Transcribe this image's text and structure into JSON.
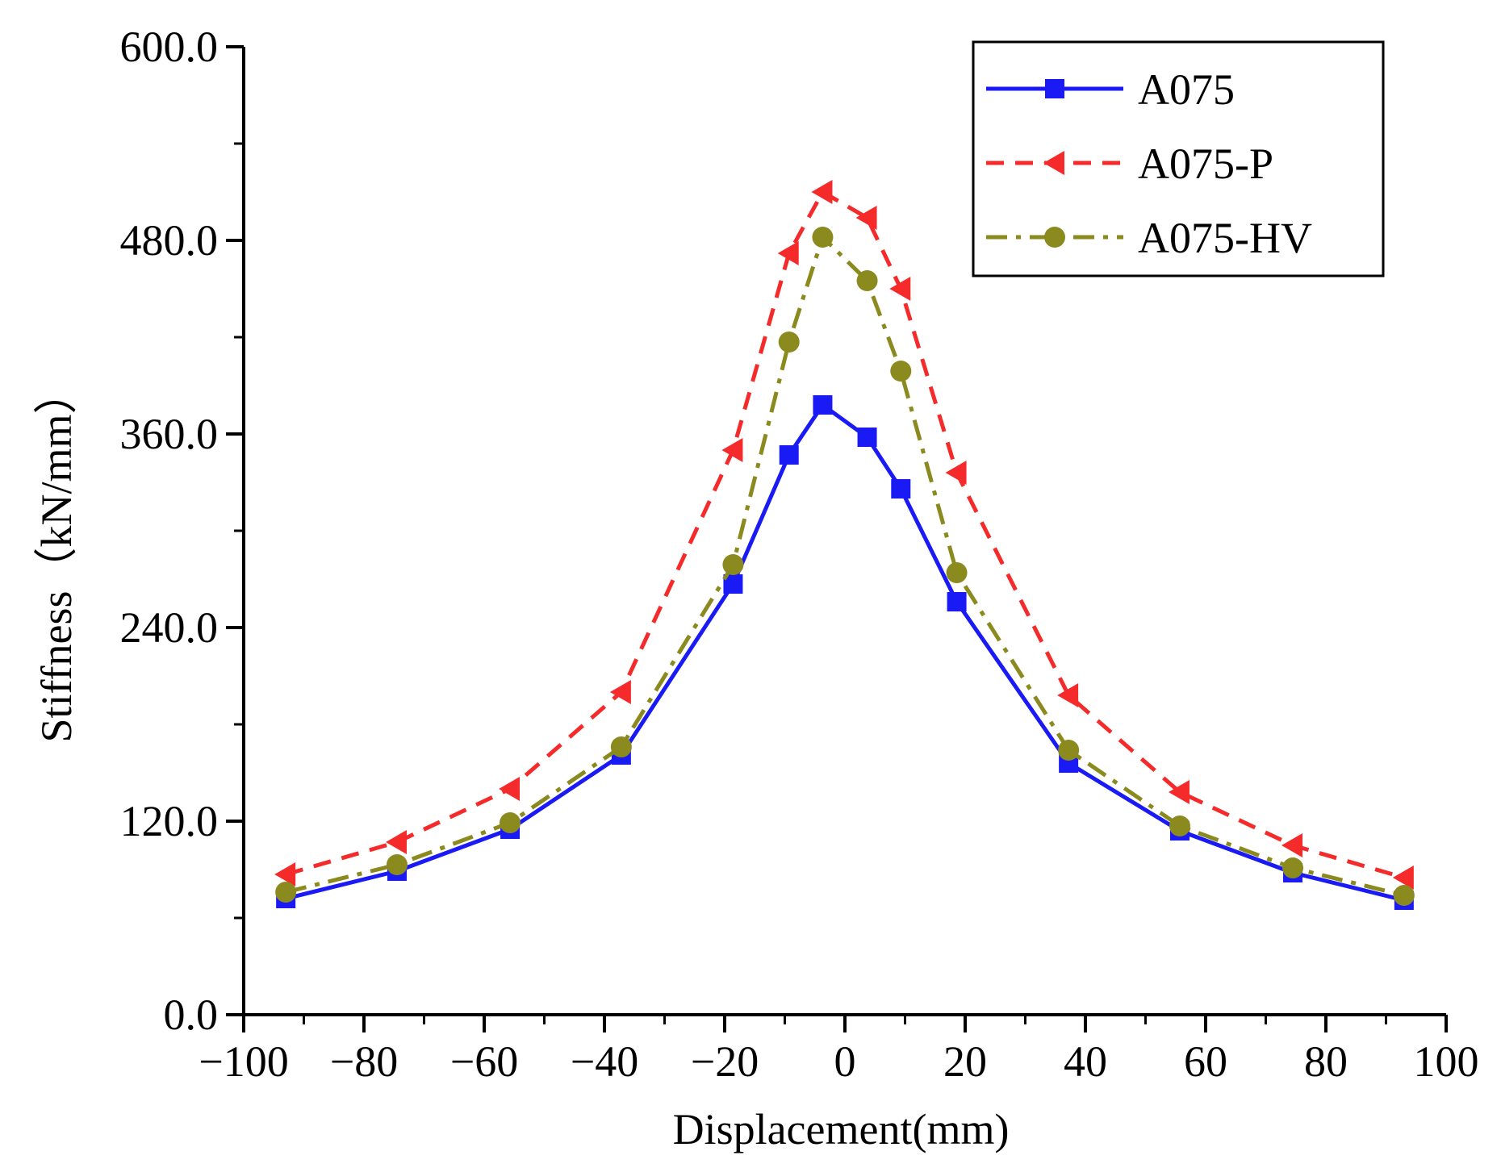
{
  "chart_data": {
    "type": "line",
    "title": "",
    "xlabel": "Displacement(mm)",
    "ylabel": "Stiffness（kN/mm）",
    "xlim": [
      -100,
      100
    ],
    "ylim": [
      0,
      600
    ],
    "xticks": [
      -100,
      -80,
      -60,
      -40,
      -20,
      0,
      20,
      40,
      60,
      80,
      100
    ],
    "xtick_labels": [
      "−100",
      "−80",
      "−60",
      "−40",
      "−20",
      "0",
      "20",
      "40",
      "60",
      "80",
      "100"
    ],
    "yticks": [
      0,
      120,
      240,
      360,
      480,
      600
    ],
    "ytick_labels": [
      "0.0",
      "120.0",
      "240.0",
      "360.0",
      "480.0",
      "600.0"
    ],
    "legend_position": "top-right",
    "series": [
      {
        "name": "A075",
        "color": "#1a1af5",
        "line_style": "solid",
        "marker": "square",
        "x": [
          -93,
          -74.5,
          -55.7,
          -37.2,
          -18.6,
          -9.3,
          -3.7,
          3.7,
          9.3,
          18.6,
          37.2,
          55.7,
          74.5,
          93
        ],
        "y": [
          72,
          89,
          115,
          161,
          267,
          347,
          378,
          358,
          326,
          256,
          156,
          114,
          88,
          71
        ]
      },
      {
        "name": "A075-P",
        "color": "#f52a2a",
        "line_style": "dashed",
        "marker": "triangle-left",
        "x": [
          -93,
          -74.5,
          -55.7,
          -37.2,
          -18.6,
          -9.3,
          -3.7,
          3.7,
          9.3,
          18.6,
          37.2,
          55.7,
          74.5,
          93
        ],
        "y": [
          87,
          107,
          140,
          200,
          350,
          472,
          510,
          494,
          450,
          336,
          198,
          138,
          105,
          85
        ]
      },
      {
        "name": "A075-HV",
        "color": "#8a8a1f",
        "line_style": "dash-dot",
        "marker": "circle",
        "x": [
          -93,
          -74.5,
          -55.7,
          -37.2,
          -18.6,
          -9.3,
          -3.7,
          3.7,
          9.3,
          18.6,
          37.2,
          55.7,
          74.5,
          93
        ],
        "y": [
          76,
          93,
          119,
          166,
          279,
          417,
          482,
          455,
          399,
          274,
          164,
          117,
          91,
          74
        ]
      }
    ]
  }
}
